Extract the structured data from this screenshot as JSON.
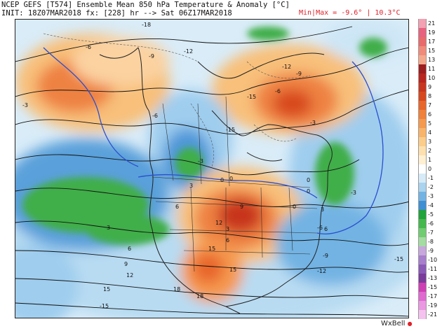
{
  "header": {
    "title": "NCEP GEFS [T574] Ensemble Mean 850 hPa Temperature & Anomaly [°C]",
    "init": "INIT: 18Z07MAR2018 fx: [228] hr --> Sat 06Z17MAR2018",
    "minmax": "Min|Max = -9.6° | 10.3°C"
  },
  "colorbar": {
    "labels": [
      "21",
      "19",
      "17",
      "15",
      "13",
      "11",
      "10",
      "9",
      "8",
      "7",
      "6",
      "5",
      "4",
      "3",
      "2",
      "1",
      "0",
      "-1",
      "-2",
      "-3",
      "-4",
      "-5",
      "-6",
      "-7",
      "-8",
      "-9",
      "-10",
      "-11",
      "-13",
      "-15",
      "-17",
      "-19",
      "-21"
    ],
    "colors": [
      "#f3a1b3",
      "#e8627f",
      "#e86a6a",
      "#f08a7a",
      "#f5a98c",
      "#9c1e1e",
      "#b8261f",
      "#c8361f",
      "#d8481f",
      "#e8662a",
      "#f0803a",
      "#f5994f",
      "#f8b46a",
      "#fbcc8a",
      "#fde0ae",
      "#fff0d2",
      "#ffffff",
      "#d6ebf7",
      "#a9d3ee",
      "#72b3e3",
      "#3f8fd4",
      "#20a33a",
      "#44b84c",
      "#6fcc70",
      "#a4dca2",
      "#c7a7dc",
      "#a77fcc",
      "#8a5ab6",
      "#7a3b9b",
      "#cf3fb4",
      "#e06ad0",
      "#eb98e2",
      "#f5c2ef"
    ]
  },
  "contour_labels": [
    "-18",
    "-6",
    "-9",
    "-12",
    "-15",
    "-6",
    "-3",
    "0",
    "3",
    "6",
    "9",
    "12",
    "15",
    "18",
    "-15",
    "-12",
    "-9",
    "-6",
    "-3",
    "0",
    "3",
    "6",
    "-3",
    "0",
    "3",
    "6",
    "9",
    "12",
    "15",
    "15",
    "18",
    "-15",
    "0",
    "-3",
    "-6",
    "-9",
    "-12",
    "-15",
    "6",
    "3",
    "0"
  ],
  "logo": {
    "text": "WxBell",
    "dot": "●"
  }
}
